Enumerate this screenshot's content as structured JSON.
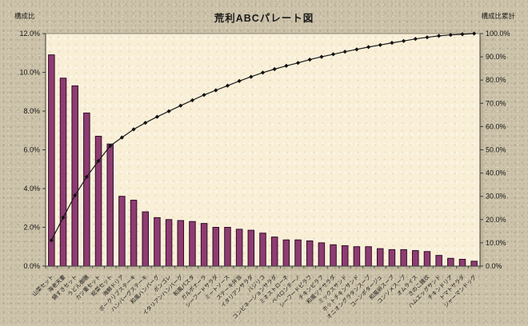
{
  "title": "荒利ABCパレート図",
  "axes": {
    "left": {
      "title": "構成比"
    },
    "right": {
      "title": "構成比累計"
    }
  },
  "chart_data": {
    "type": "bar+line pareto",
    "title": "荒利ABCパレート図",
    "grid": false,
    "legend": "none",
    "categories": [
      "山菜セット",
      "海老天重",
      "鍋すきセット",
      "うどん御膳",
      "カツ重セット",
      "総菜セット",
      "海鮮ドリア",
      "ポークリブステーキ",
      "ハンバーグステーキ",
      "和風ハンバーグ",
      "ボンゴレ",
      "イタリアンハンバーグ",
      "和風パスタ",
      "カルボナーラ",
      "シーフードサラダ",
      "ミートソース",
      "ステーキ弁当",
      "イタリアンサラダ",
      "バジリコ",
      "コンビネーションサラダ",
      "ミネストローネ",
      "ペペロンチーノ",
      "シーフードピラフ",
      "チキンピラフ",
      "和風ツナサラダ",
      "ミックスサンド",
      "ホットチキンサンド",
      "オニオングラタンスープ",
      "コーンポタージュ",
      "和風卵スープ",
      "コンソメスープ",
      "オムライス",
      "きのこ雑炊",
      "ハムエッグサンド",
      "チキンドリア",
      "トマトサラダ",
      "ジャーマンドッグ"
    ],
    "series": [
      {
        "name": "構成比",
        "type": "bar",
        "axis": "left",
        "values": [
          10.9,
          9.7,
          9.3,
          7.9,
          6.7,
          6.3,
          3.6,
          3.4,
          2.8,
          2.5,
          2.4,
          2.35,
          2.3,
          2.2,
          2.0,
          2.0,
          1.9,
          1.85,
          1.7,
          1.5,
          1.35,
          1.35,
          1.3,
          1.2,
          1.1,
          1.05,
          1.0,
          1.0,
          0.9,
          0.85,
          0.85,
          0.8,
          0.75,
          0.55,
          0.4,
          0.35,
          0.25
        ]
      },
      {
        "name": "構成比累計",
        "type": "line",
        "axis": "right",
        "values": [
          11.1,
          20.9,
          30.4,
          38.4,
          45.2,
          51.7,
          55.3,
          58.8,
          61.6,
          64.2,
          66.6,
          69.0,
          71.3,
          73.6,
          75.6,
          77.6,
          79.6,
          81.4,
          83.2,
          84.7,
          86.1,
          87.4,
          88.8,
          90.0,
          91.1,
          92.2,
          93.2,
          94.2,
          95.1,
          96.0,
          96.8,
          97.7,
          98.4,
          99.0,
          99.4,
          99.7,
          100.0
        ]
      }
    ],
    "left_axis": {
      "title": "構成比",
      "min": 0,
      "max": 12,
      "step": 2,
      "tick_labels": [
        "0.0%",
        "2.0%",
        "4.0%",
        "6.0%",
        "8.0%",
        "10.0%",
        "12.0%"
      ]
    },
    "right_axis": {
      "title": "構成比累計",
      "min": 0,
      "max": 100,
      "step": 10,
      "tick_labels": [
        "0.0%",
        "10.0%",
        "20.0%",
        "30.0%",
        "40.0%",
        "50.0%",
        "60.0%",
        "70.0%",
        "80.0%",
        "90.0%",
        "100.0%"
      ]
    },
    "colors": {
      "bar_fill": "#8e3c72",
      "bar_stroke": "#2d0d26",
      "line": "#1a1a1a",
      "marker": "#111111",
      "plot_bg": "#f9efd7",
      "page_bg": "#cec4ab"
    }
  }
}
